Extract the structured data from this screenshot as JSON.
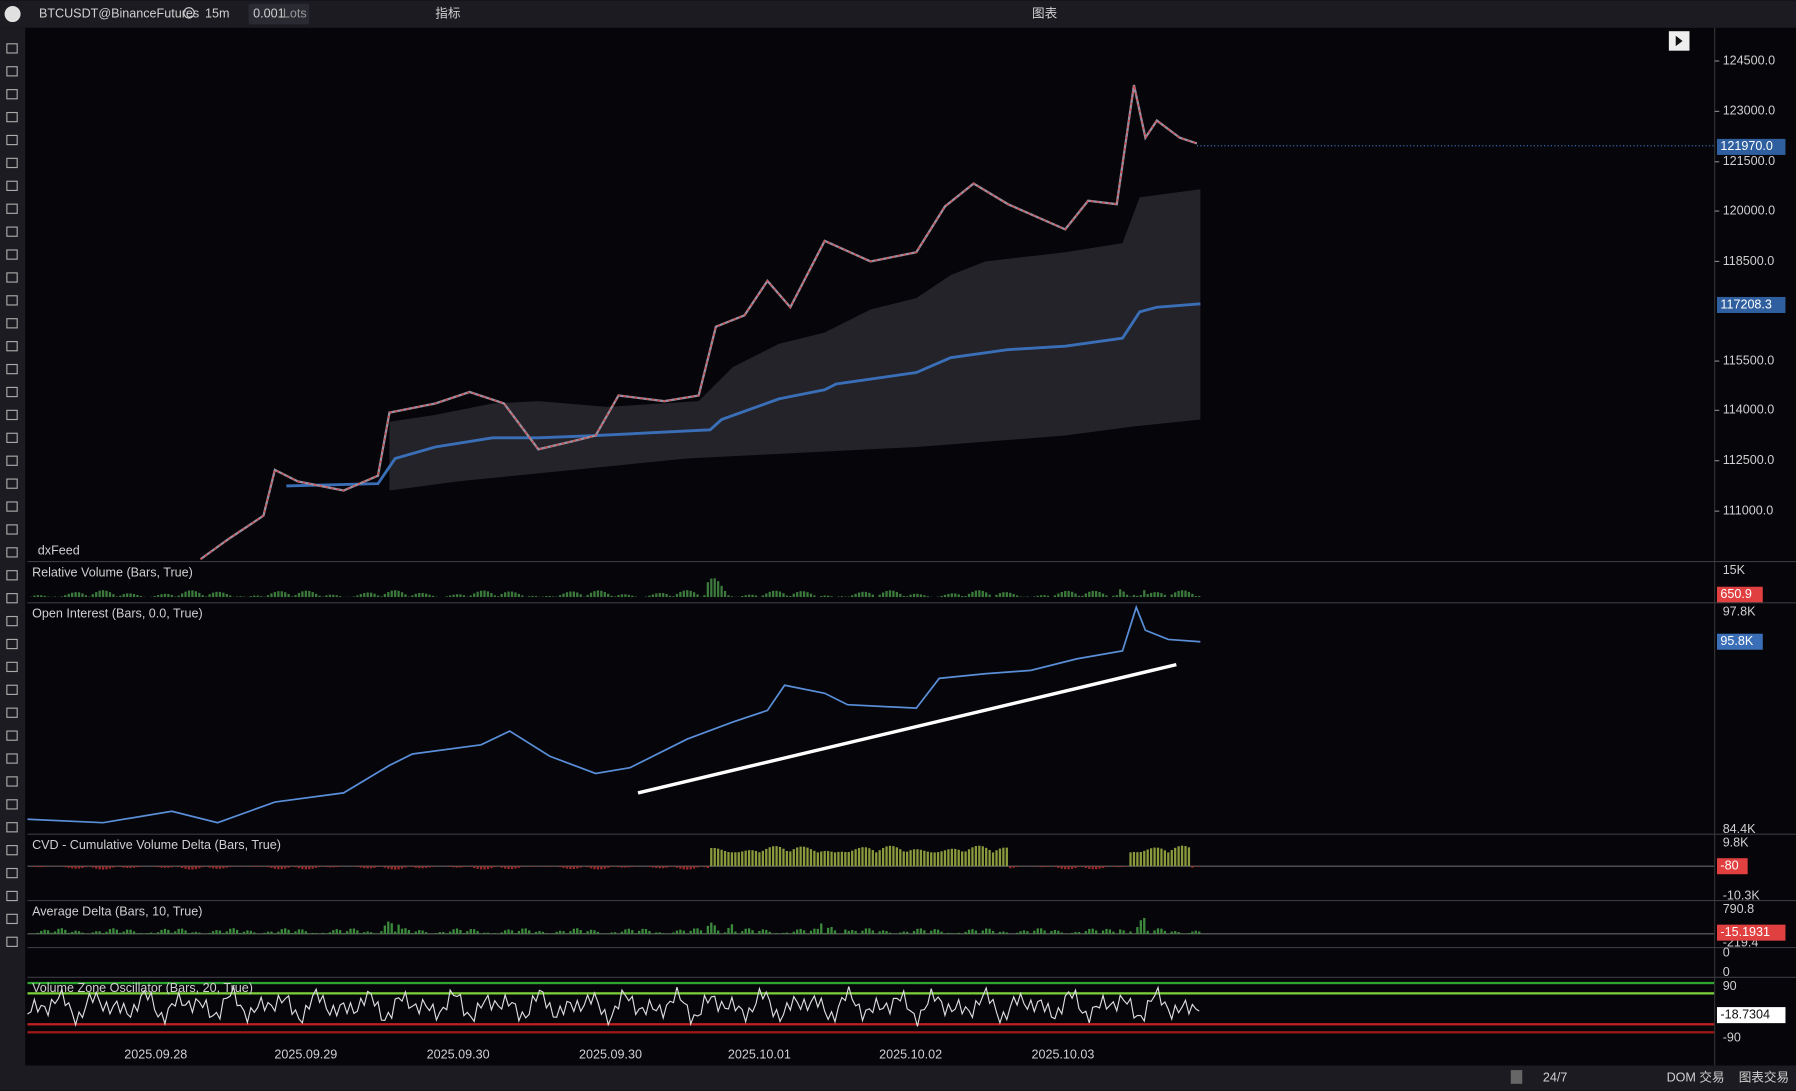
{
  "toolbar": {
    "symbol": "BTCUSDT@BinanceFutures",
    "interval": "15m",
    "quantity": "0.001",
    "unit": "Lots",
    "indicators": "指标",
    "title": "图表"
  },
  "price_axis": {
    "labels": [
      "124500.0",
      "123000.0",
      "121500.0",
      "120000.0",
      "118500.0",
      "115500.0",
      "114000.0",
      "112500.0",
      "111000.0"
    ],
    "last_price": "121970.0",
    "vwap": "117208.3"
  },
  "feed": "dxFeed",
  "panels": [
    {
      "title": "Relative Volume (Bars, True)",
      "labels": [
        "15K"
      ],
      "badge": "650.9"
    },
    {
      "title": "Open Interest (Bars, 0.0, True)",
      "labels": [
        "97.8K",
        "84.4K"
      ],
      "badge": "95.8K"
    },
    {
      "title": "CVD - Cumulative Volume Delta (Bars, True)",
      "labels": [
        "9.8K",
        "-10.3K"
      ],
      "badge": "-80"
    },
    {
      "title": "Average Delta (Bars, 10, True)",
      "labels": [
        "790.8",
        "-219.4"
      ],
      "badge": "-15.1931"
    },
    {
      "title": "",
      "labels": [
        "0",
        "0"
      ],
      "badge": ""
    },
    {
      "title": "Volume Zone Oscillator (Bars, 20, True)",
      "labels": [
        "90",
        "-90"
      ],
      "badge": "-18.7304"
    }
  ],
  "dates": [
    "2025.09.28",
    "2025.09.29",
    "2025.09.30",
    "2025.09.30",
    "2025.10.01",
    "2025.10.02",
    "2025.10.03"
  ],
  "footer": {
    "session": "24/7",
    "dom": "DOM 交易",
    "chart_trading": "图表交易"
  }
}
